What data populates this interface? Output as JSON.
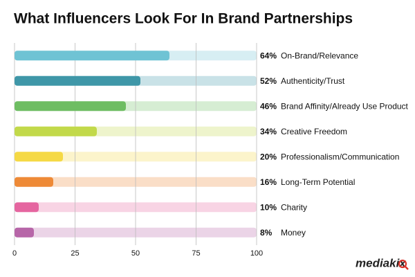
{
  "chart_data": {
    "type": "hbar",
    "title": "What Influencers Look For In Brand Partnerships",
    "categories": [
      "On-Brand/Relevance",
      "Authenticity/Trust",
      "Brand Affinity/Already Use Product",
      "Creative Freedom",
      "Professionalism/Communication",
      "Long-Term Potential",
      "Charity",
      "Money"
    ],
    "values": [
      64,
      52,
      46,
      34,
      20,
      16,
      10,
      8
    ],
    "value_labels": [
      "64%",
      "52%",
      "46%",
      "34%",
      "20%",
      "16%",
      "10%",
      "8%"
    ],
    "colors": [
      "#6fc3d4",
      "#3f97a8",
      "#6ebd62",
      "#c2d94a",
      "#f5d945",
      "#ee8a37",
      "#e566a0",
      "#b766a8"
    ],
    "xlim": [
      0,
      100
    ],
    "xticks": [
      0,
      25,
      50,
      75,
      100
    ],
    "grid": true
  },
  "logo": "mediakix"
}
